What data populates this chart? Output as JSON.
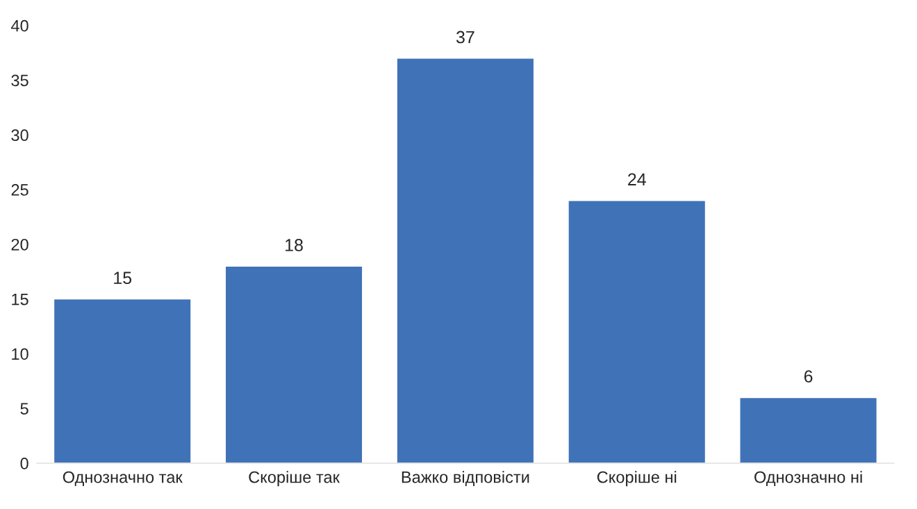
{
  "chart_data": {
    "type": "bar",
    "categories": [
      "Однозначно так",
      "Скоріше так",
      "Важко відповісти",
      "Скоріше ні",
      "Однозначно ні"
    ],
    "values": [
      15,
      18,
      37,
      24,
      6
    ],
    "color": "#4072b8",
    "ylim": [
      0,
      40
    ],
    "yticks": [
      0,
      5,
      10,
      15,
      20,
      25,
      30,
      35,
      40
    ],
    "data_labels": true,
    "grid": false,
    "legend": false
  }
}
